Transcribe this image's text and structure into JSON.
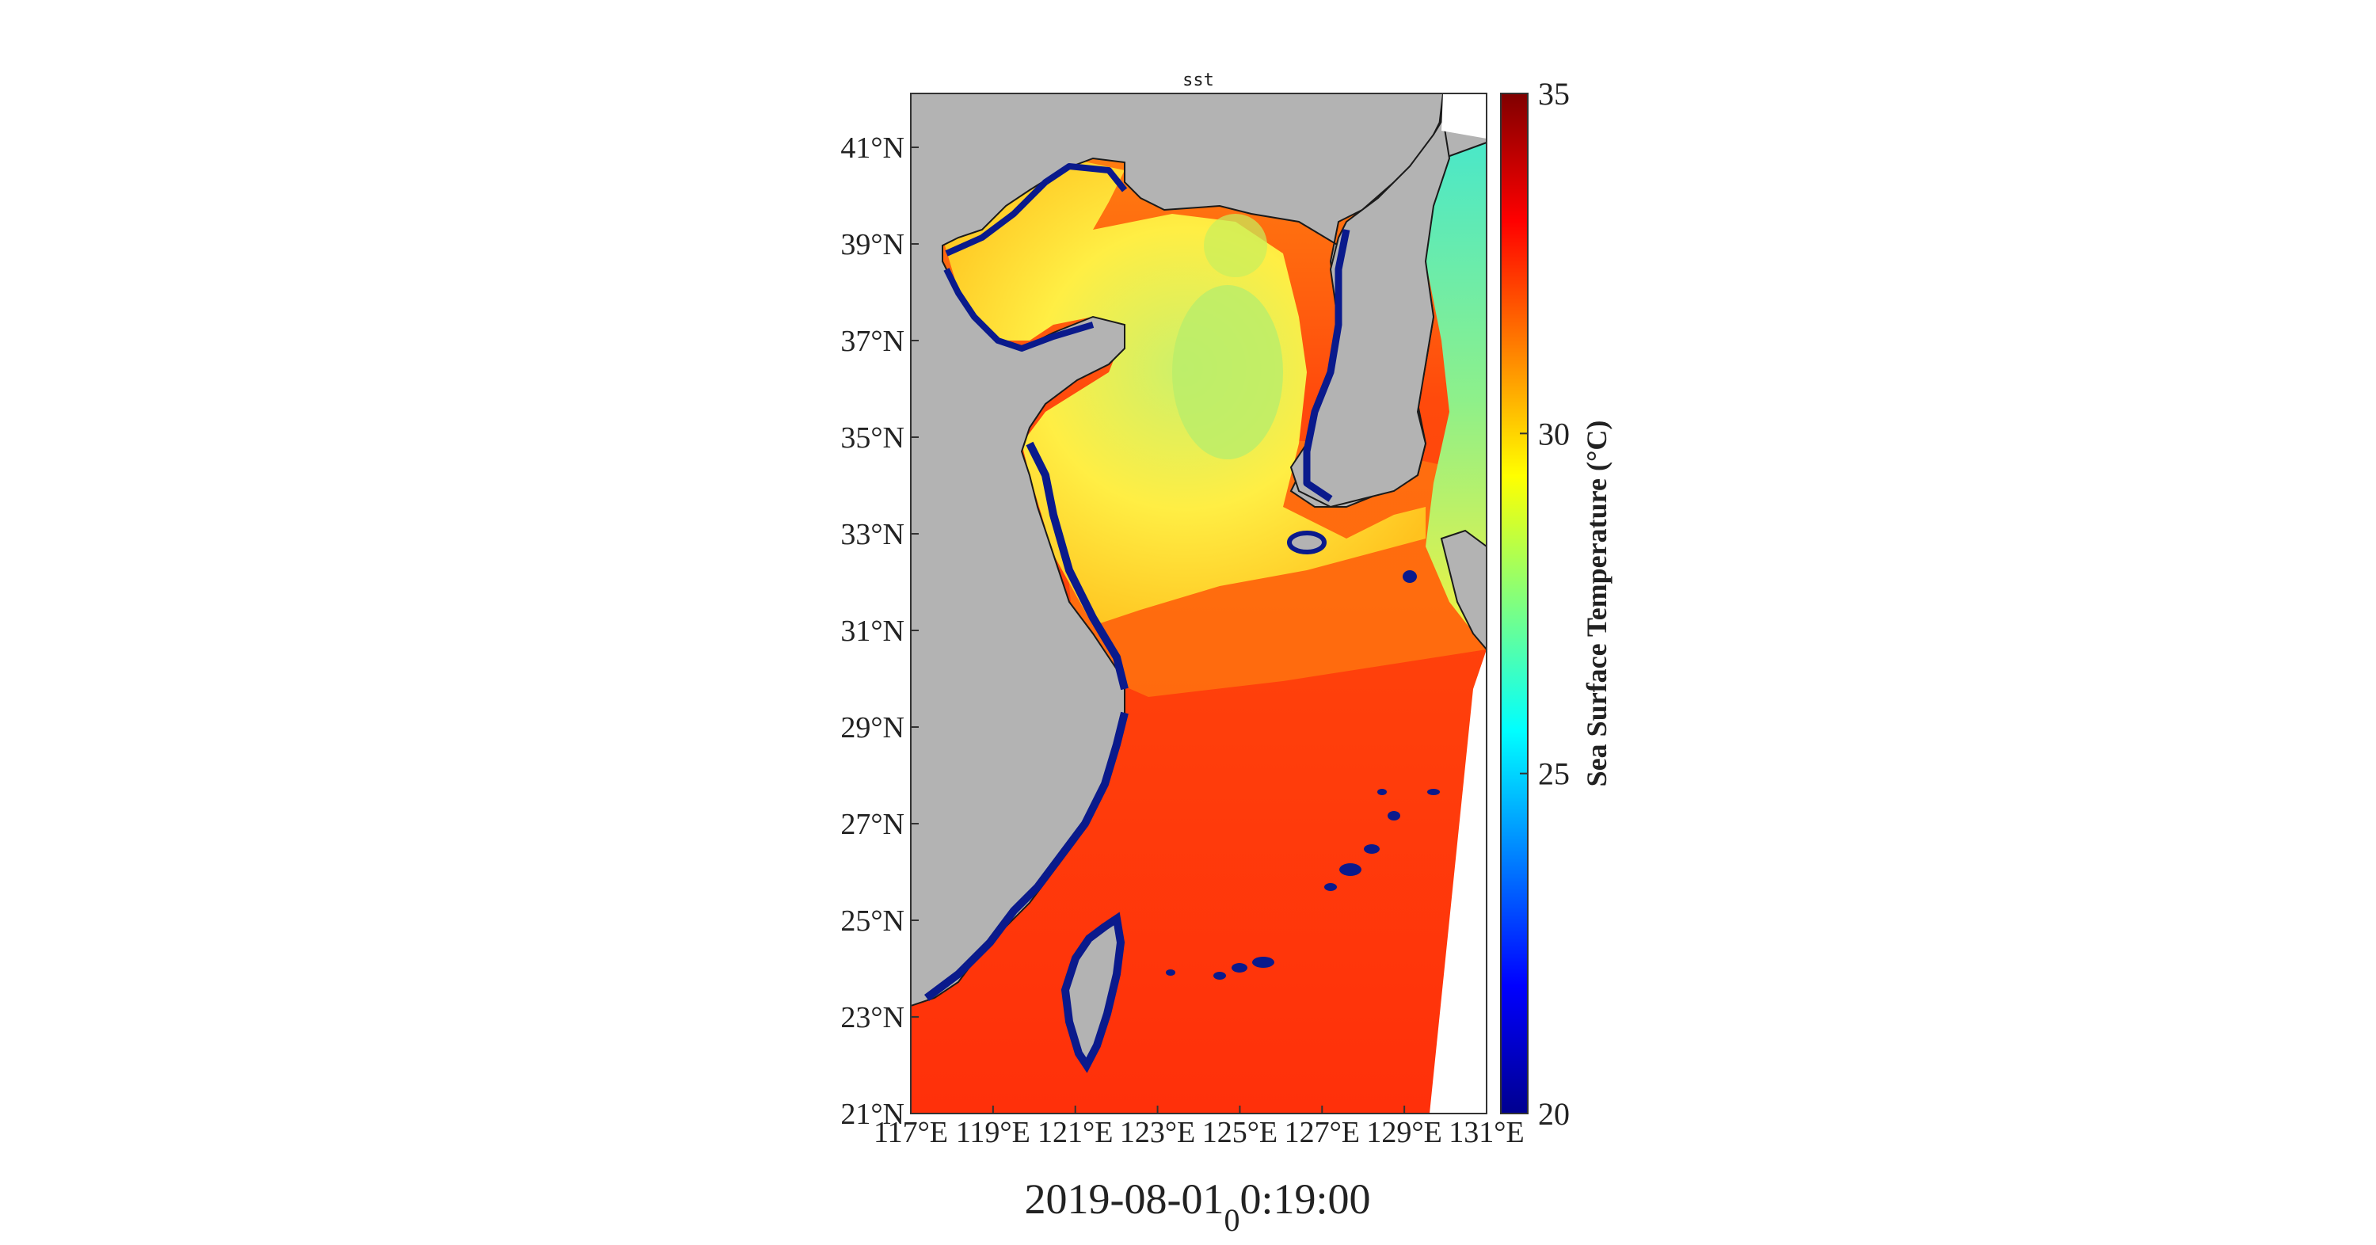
{
  "map": {
    "title": "sst",
    "lat_labels": [
      "41°N",
      "39°N",
      "37°N",
      "35°N",
      "33°N",
      "31°N",
      "29°N",
      "27°N",
      "25°N",
      "23°N",
      "21°N"
    ],
    "lon_labels": [
      "117°E",
      "119°E",
      "121°E",
      "123°E",
      "125°E",
      "127°E",
      "129°E",
      "131°E"
    ],
    "colorbar": {
      "label": "Sea Surface Temperature (°C)",
      "ticks": [
        "35",
        "30",
        "25",
        "20"
      ],
      "min": 20,
      "max": 35,
      "colormap": "jet"
    },
    "timestamp": {
      "main": "2019-08-01",
      "subscript": "0",
      "rest": "0:19:00"
    }
  },
  "colors": {
    "land": "#b3b3b3",
    "warm_sea": "#ff3a0a",
    "yellow_sea": "#ffe94a",
    "cool_sea": "#3fe0c8",
    "coast_cold": "#0a1a8c"
  }
}
